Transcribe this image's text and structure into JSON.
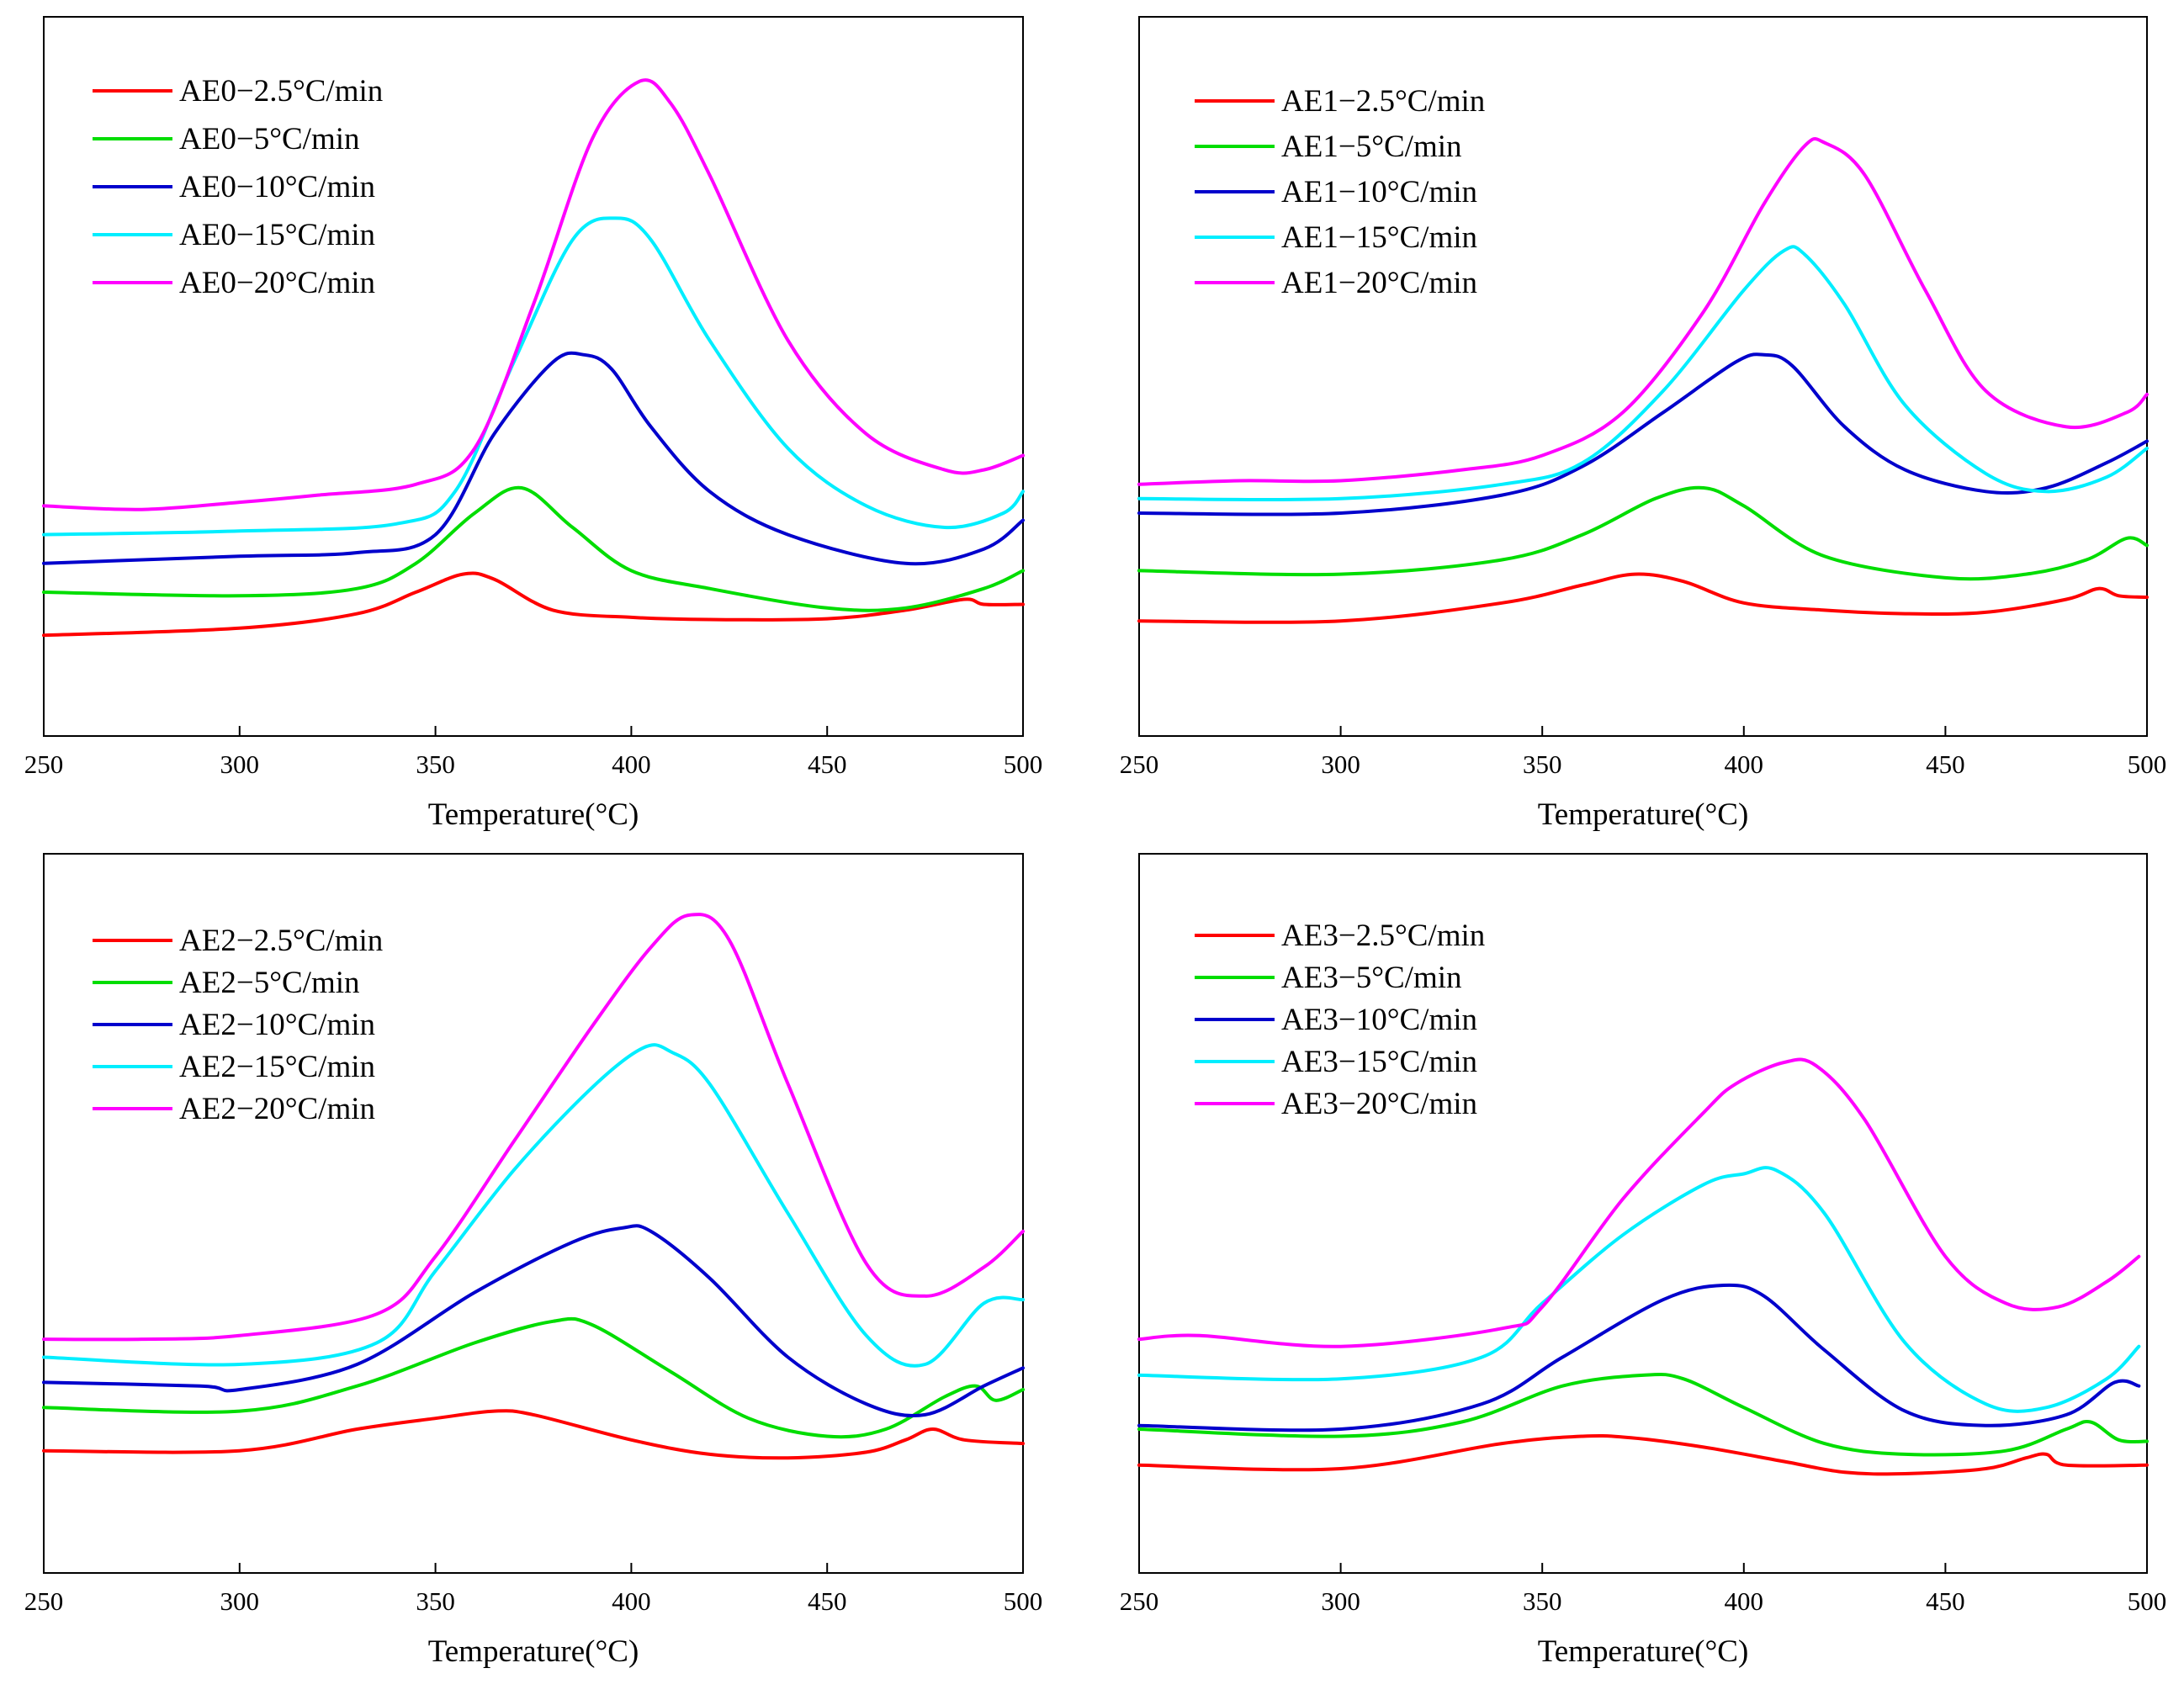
{
  "chart_data": [
    {
      "type": "line",
      "xlabel": "Temperature(°C)",
      "xlim": [
        250,
        500
      ],
      "xticks": [
        250,
        300,
        350,
        400,
        450,
        500
      ],
      "grid": false,
      "legend": "top-left",
      "series": [
        {
          "name": "AE0−2.5°C/min",
          "color": "#ff0000",
          "x": [
            250,
            300,
            330,
            345,
            357,
            365,
            380,
            400,
            420,
            450,
            470,
            485,
            490,
            500
          ],
          "y": [
            0.14,
            0.15,
            0.17,
            0.2,
            0.225,
            0.218,
            0.175,
            0.165,
            0.162,
            0.163,
            0.175,
            0.19,
            0.183,
            0.183
          ]
        },
        {
          "name": "AE0−5°C/min",
          "color": "#00dd00",
          "x": [
            250,
            300,
            330,
            345,
            360,
            372,
            385,
            400,
            420,
            450,
            470,
            490,
            500
          ],
          "y": [
            0.2,
            0.195,
            0.205,
            0.24,
            0.31,
            0.345,
            0.29,
            0.23,
            0.205,
            0.178,
            0.178,
            0.205,
            0.23
          ]
        },
        {
          "name": "AE0−10°C/min",
          "color": "#0000cc",
          "x": [
            250,
            300,
            330,
            350,
            365,
            380,
            388,
            395,
            405,
            420,
            440,
            470,
            490,
            500
          ],
          "y": [
            0.24,
            0.25,
            0.255,
            0.28,
            0.42,
            0.52,
            0.53,
            0.51,
            0.43,
            0.34,
            0.28,
            0.24,
            0.26,
            0.3
          ]
        },
        {
          "name": "AE0−15°C/min",
          "color": "#00eeff",
          "x": [
            250,
            300,
            340,
            355,
            370,
            385,
            396,
            405,
            420,
            440,
            460,
            480,
            495,
            500
          ],
          "y": [
            0.28,
            0.285,
            0.295,
            0.34,
            0.52,
            0.69,
            0.72,
            0.69,
            0.55,
            0.4,
            0.32,
            0.29,
            0.31,
            0.34
          ]
        },
        {
          "name": "AE0−20°C/min",
          "color": "#ff00ff",
          "x": [
            250,
            275,
            300,
            320,
            345,
            360,
            375,
            390,
            402,
            410,
            420,
            440,
            460,
            480,
            490,
            500
          ],
          "y": [
            0.32,
            0.315,
            0.325,
            0.335,
            0.35,
            0.4,
            0.6,
            0.83,
            0.91,
            0.88,
            0.78,
            0.55,
            0.42,
            0.37,
            0.37,
            0.39
          ]
        }
      ]
    },
    {
      "type": "line",
      "xlabel": "Temperature(°C)",
      "xlim": [
        250,
        500
      ],
      "xticks": [
        250,
        300,
        350,
        400,
        450,
        500
      ],
      "grid": false,
      "legend": "top-left",
      "series": [
        {
          "name": "AE1−2.5°C/min",
          "color": "#ff0000",
          "x": [
            250,
            300,
            340,
            360,
            373,
            385,
            400,
            420,
            440,
            460,
            480,
            488,
            493,
            500
          ],
          "y": [
            0.16,
            0.16,
            0.185,
            0.21,
            0.225,
            0.215,
            0.185,
            0.175,
            0.17,
            0.172,
            0.19,
            0.205,
            0.195,
            0.193
          ]
        },
        {
          "name": "AE1−5°C/min",
          "color": "#00dd00",
          "x": [
            250,
            300,
            340,
            360,
            378,
            390,
            400,
            420,
            450,
            470,
            485,
            495,
            500
          ],
          "y": [
            0.23,
            0.225,
            0.245,
            0.28,
            0.33,
            0.345,
            0.32,
            0.25,
            0.22,
            0.225,
            0.245,
            0.275,
            0.265
          ]
        },
        {
          "name": "AE1−10°C/min",
          "color": "#0000cc",
          "x": [
            250,
            300,
            340,
            360,
            380,
            398,
            405,
            412,
            425,
            440,
            460,
            475,
            490,
            500
          ],
          "y": [
            0.31,
            0.31,
            0.335,
            0.375,
            0.45,
            0.52,
            0.53,
            0.515,
            0.43,
            0.37,
            0.34,
            0.345,
            0.38,
            0.41
          ]
        },
        {
          "name": "AE1−15°C/min",
          "color": "#00eeff",
          "x": [
            250,
            300,
            340,
            360,
            380,
            400,
            410,
            415,
            425,
            440,
            460,
            475,
            490,
            500
          ],
          "y": [
            0.33,
            0.33,
            0.35,
            0.38,
            0.48,
            0.62,
            0.675,
            0.67,
            0.6,
            0.46,
            0.365,
            0.34,
            0.36,
            0.4
          ]
        },
        {
          "name": "AE1−20°C/min",
          "color": "#ff00ff",
          "x": [
            250,
            275,
            300,
            330,
            350,
            370,
            390,
            405,
            415,
            420,
            430,
            445,
            460,
            480,
            495,
            500
          ],
          "y": [
            0.35,
            0.355,
            0.355,
            0.37,
            0.39,
            0.45,
            0.59,
            0.74,
            0.82,
            0.825,
            0.78,
            0.62,
            0.48,
            0.43,
            0.45,
            0.475
          ]
        }
      ]
    },
    {
      "type": "line",
      "xlabel": "Temperature(°C)",
      "xlim": [
        250,
        500
      ],
      "xticks": [
        250,
        300,
        350,
        400,
        450,
        500
      ],
      "grid": false,
      "legend": "top-left",
      "series": [
        {
          "name": "AE2−2.5°C/min",
          "color": "#ff0000",
          "x": [
            250,
            300,
            330,
            350,
            365,
            375,
            400,
            420,
            440,
            460,
            470,
            477,
            485,
            500
          ],
          "y": [
            0.17,
            0.17,
            0.2,
            0.215,
            0.225,
            0.22,
            0.185,
            0.165,
            0.16,
            0.168,
            0.185,
            0.2,
            0.185,
            0.18
          ]
        },
        {
          "name": "AE2−5°C/min",
          "color": "#00dd00",
          "x": [
            250,
            300,
            330,
            360,
            380,
            390,
            410,
            430,
            450,
            465,
            480,
            488,
            493,
            500
          ],
          "y": [
            0.23,
            0.225,
            0.26,
            0.32,
            0.35,
            0.345,
            0.28,
            0.215,
            0.19,
            0.2,
            0.245,
            0.26,
            0.24,
            0.255
          ]
        },
        {
          "name": "AE2−10°C/min",
          "color": "#0000cc",
          "x": [
            250,
            290,
            300,
            330,
            360,
            385,
            398,
            405,
            420,
            440,
            460,
            475,
            490,
            500
          ],
          "y": [
            0.265,
            0.26,
            0.255,
            0.29,
            0.39,
            0.46,
            0.48,
            0.475,
            0.41,
            0.3,
            0.235,
            0.22,
            0.26,
            0.285
          ]
        },
        {
          "name": "AE2−15°C/min",
          "color": "#00eeff",
          "x": [
            250,
            300,
            335,
            350,
            370,
            390,
            403,
            410,
            420,
            440,
            460,
            475,
            490,
            500
          ],
          "y": [
            0.3,
            0.29,
            0.32,
            0.42,
            0.56,
            0.675,
            0.73,
            0.725,
            0.68,
            0.5,
            0.33,
            0.29,
            0.375,
            0.38
          ]
        },
        {
          "name": "AE2−20°C/min",
          "color": "#ff00ff",
          "x": [
            250,
            275,
            300,
            335,
            350,
            370,
            390,
            405,
            415,
            425,
            440,
            460,
            475,
            490,
            500
          ],
          "y": [
            0.325,
            0.325,
            0.33,
            0.36,
            0.44,
            0.6,
            0.76,
            0.87,
            0.915,
            0.88,
            0.68,
            0.43,
            0.385,
            0.425,
            0.475
          ]
        }
      ]
    },
    {
      "type": "line",
      "xlabel": "Temperature(°C)",
      "xlim": [
        250,
        500
      ],
      "xticks": [
        250,
        300,
        350,
        400,
        450,
        500
      ],
      "grid": false,
      "legend": "top-left",
      "series": [
        {
          "name": "AE3−2.5°C/min",
          "color": "#ff0000",
          "x": [
            250,
            300,
            340,
            360,
            372,
            390,
            410,
            425,
            440,
            460,
            470,
            475,
            480,
            500
          ],
          "y": [
            0.15,
            0.145,
            0.18,
            0.19,
            0.188,
            0.175,
            0.155,
            0.14,
            0.138,
            0.145,
            0.16,
            0.165,
            0.15,
            0.15
          ]
        },
        {
          "name": "AE3−5°C/min",
          "color": "#00dd00",
          "x": [
            250,
            300,
            330,
            355,
            375,
            385,
            400,
            420,
            440,
            465,
            480,
            486,
            493,
            500
          ],
          "y": [
            0.2,
            0.19,
            0.21,
            0.26,
            0.275,
            0.27,
            0.23,
            0.18,
            0.165,
            0.17,
            0.2,
            0.21,
            0.185,
            0.183
          ]
        },
        {
          "name": "AE3−10°C/min",
          "color": "#0000cc",
          "x": [
            250,
            300,
            335,
            355,
            380,
            395,
            405,
            420,
            440,
            460,
            480,
            492,
            498
          ],
          "y": [
            0.205,
            0.2,
            0.235,
            0.3,
            0.38,
            0.4,
            0.385,
            0.31,
            0.225,
            0.205,
            0.22,
            0.265,
            0.26
          ]
        },
        {
          "name": "AE3−15°C/min",
          "color": "#00eeff",
          "x": [
            250,
            300,
            335,
            350,
            370,
            390,
            400,
            408,
            420,
            440,
            460,
            475,
            490,
            498
          ],
          "y": [
            0.275,
            0.27,
            0.3,
            0.375,
            0.47,
            0.54,
            0.555,
            0.56,
            0.5,
            0.32,
            0.235,
            0.23,
            0.27,
            0.315
          ]
        },
        {
          "name": "AE3−20°C/min",
          "color": "#ff00ff",
          "x": [
            250,
            265,
            300,
            340,
            350,
            370,
            390,
            398,
            410,
            418,
            430,
            450,
            465,
            478,
            490,
            498
          ],
          "y": [
            0.325,
            0.33,
            0.315,
            0.34,
            0.37,
            0.52,
            0.64,
            0.68,
            0.71,
            0.705,
            0.63,
            0.44,
            0.375,
            0.37,
            0.405,
            0.44
          ]
        }
      ]
    }
  ]
}
